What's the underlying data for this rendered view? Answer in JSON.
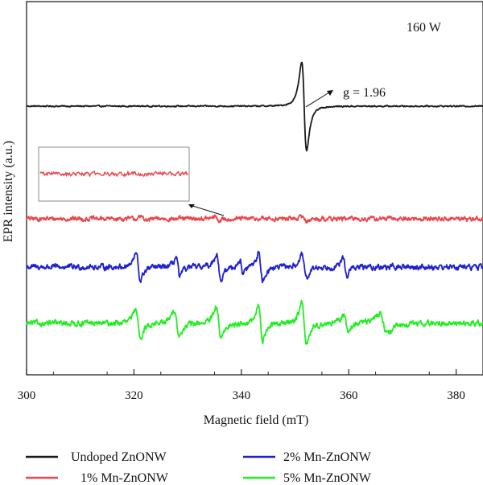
{
  "chart_data": {
    "type": "line",
    "title": "",
    "xlabel": "Magnetic field (mT)",
    "ylabel": "EPR intensity (a.u.)",
    "xlim": [
      300,
      385
    ],
    "xticks": [
      300,
      320,
      340,
      360,
      380
    ],
    "y_ticks_shown": false,
    "grid": false,
    "legend_position": "bottom",
    "annotations": {
      "power": "160 W",
      "g_value": "g = 1.96"
    },
    "inset": {
      "description_series": "1% Mn-ZnONW",
      "x_range_mT": [
        302,
        330
      ]
    },
    "series": [
      {
        "name": "Undoped ZnONW",
        "color": "#1a1a1a",
        "baseline": 0,
        "noise": 0.25,
        "features": [
          {
            "center": 351.7,
            "amplitude": 26,
            "width": 0.8
          }
        ]
      },
      {
        "name": "1% Mn-ZnONW",
        "color": "#e8474d",
        "baseline": -56,
        "noise": 0.9,
        "features": [
          {
            "center": 322.0,
            "amplitude": 1.2,
            "width": 0.6
          },
          {
            "center": 335.5,
            "amplitude": 1.2,
            "width": 0.6
          },
          {
            "center": 351.8,
            "amplitude": 1.5,
            "width": 0.6
          }
        ]
      },
      {
        "name": "2% Mn-ZnONW",
        "color": "#1f1fd0",
        "baseline": -80,
        "noise": 1.1,
        "features": [
          {
            "center": 320.8,
            "amplitude": 8,
            "width": 0.7
          },
          {
            "center": 328.2,
            "amplitude": 6,
            "width": 0.6
          },
          {
            "center": 335.8,
            "amplitude": 8,
            "width": 0.7
          },
          {
            "center": 340.0,
            "amplitude": 4,
            "width": 0.5
          },
          {
            "center": 343.6,
            "amplitude": 8,
            "width": 0.7
          },
          {
            "center": 351.7,
            "amplitude": 7,
            "width": 0.7
          },
          {
            "center": 359.3,
            "amplitude": 5,
            "width": 0.6
          }
        ]
      },
      {
        "name": "5% Mn-ZnONW",
        "color": "#22ee22",
        "baseline": -108,
        "noise": 1.1,
        "features": [
          {
            "center": 320.8,
            "amplitude": 8,
            "width": 0.8
          },
          {
            "center": 328.0,
            "amplitude": 8,
            "width": 0.8
          },
          {
            "center": 335.8,
            "amplitude": 9,
            "width": 0.8
          },
          {
            "center": 343.6,
            "amplitude": 10,
            "width": 0.7
          },
          {
            "center": 351.7,
            "amplitude": 12,
            "width": 0.8
          },
          {
            "center": 359.5,
            "amplitude": 5,
            "width": 0.7
          },
          {
            "center": 366.5,
            "amplitude": 6,
            "width": 1.4
          }
        ]
      }
    ]
  }
}
